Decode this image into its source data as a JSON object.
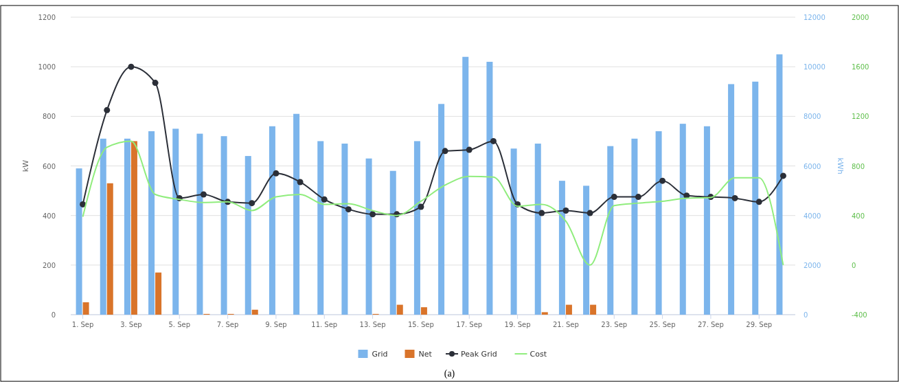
{
  "chart_data": {
    "type": "bar",
    "categories": [
      "1. Sep",
      null,
      "3. Sep",
      null,
      "5. Sep",
      null,
      "7. Sep",
      null,
      "9. Sep",
      null,
      "11. Sep",
      null,
      "13. Sep",
      null,
      "15. Sep",
      null,
      "17. Sep",
      null,
      "19. Sep",
      null,
      "21. Sep",
      null,
      "23. Sep",
      null,
      "25. Sep",
      null,
      "27. Sep",
      null,
      "29. Sep",
      null
    ],
    "ylabel": "kW",
    "y2label": "kWh",
    "ylim": [
      0,
      1200
    ],
    "yticks": [
      0,
      200,
      400,
      600,
      800,
      1000,
      1200
    ],
    "y2lim": [
      0,
      12000
    ],
    "y2ticks": [
      0,
      2000,
      4000,
      6000,
      8000,
      10000,
      12000
    ],
    "y3lim": [
      -400,
      2000
    ],
    "y3ticks": [
      -400,
      0,
      400,
      800,
      1200,
      1600,
      2000
    ],
    "grid": "y",
    "legend": "bottom",
    "series": [
      {
        "name": "Grid",
        "type": "bar",
        "axis": "y2",
        "color": "#7cb5ec",
        "values": [
          5900,
          7100,
          7100,
          7400,
          7500,
          7300,
          7200,
          6400,
          7600,
          8100,
          7000,
          6900,
          6300,
          5800,
          7000,
          8500,
          10400,
          10200,
          6700,
          6900,
          5400,
          5200,
          6800,
          7100,
          7400,
          7700,
          7600,
          9300,
          9400,
          10500
        ]
      },
      {
        "name": "Net",
        "axis": "y2",
        "color": "#d9742a",
        "values": [
          500,
          5300,
          7000,
          1700,
          0,
          30,
          30,
          200,
          0,
          0,
          0,
          0,
          30,
          400,
          300,
          0,
          0,
          0,
          0,
          100,
          400,
          400,
          0,
          0,
          0,
          0,
          0,
          0,
          0,
          0
        ]
      },
      {
        "name": "Peak Grid",
        "type": "line",
        "color": "#2b2f38",
        "marker": "circle",
        "line_style": "solid",
        "values": [
          445,
          825,
          1000,
          935,
          470,
          485,
          455,
          450,
          570,
          535,
          465,
          425,
          405,
          405,
          435,
          660,
          665,
          700,
          445,
          410,
          420,
          410,
          475,
          475,
          540,
          480,
          475,
          470,
          455,
          560
        ]
      },
      {
        "name": "Cost",
        "type": "line",
        "axis": "y3",
        "color": "#90ed7d",
        "marker": "none",
        "line_style": "solid",
        "values": [
          390,
          950,
          1000,
          570,
          530,
          505,
          510,
          440,
          550,
          570,
          490,
          495,
          440,
          400,
          515,
          645,
          715,
          710,
          475,
          490,
          355,
          0,
          480,
          500,
          515,
          540,
          545,
          705,
          705,
          0
        ]
      }
    ],
    "annotations": [
      "(a)"
    ]
  }
}
